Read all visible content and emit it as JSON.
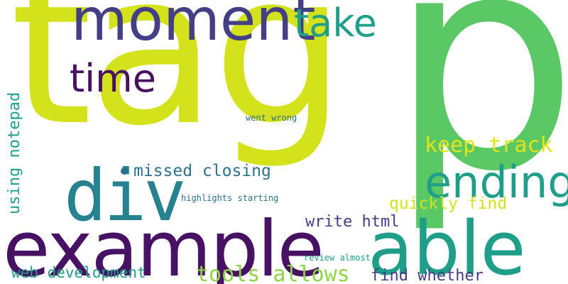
{
  "words": {
    "tag": "tag",
    "p": "p",
    "moment": "moment",
    "take": "take",
    "time": "time",
    "example": "example",
    "able": "able",
    "div": "div",
    "ending": "ending",
    "keep_track": "keep track",
    "missed_closing": "missed closing",
    "quickly_find": "quickly find",
    "using_notepad": "using notepad",
    "went_wrong": "went wrong",
    "highlights_starting": "highlights starting",
    "write_html": "write html",
    "tools_allows": "tools allows",
    "web_development": "web development",
    "find_whether": "find whether",
    "review_almost": "review almost"
  },
  "colors": {
    "yellow_green": "#d3e21b",
    "green": "#5ac864",
    "navy": "#433e85",
    "teal": "#1f9e89",
    "purple": "#471164",
    "blue_teal": "#26828e",
    "slate_blue": "#2c728e",
    "light_green": "#8ed645",
    "mustard": "#e3e418"
  }
}
